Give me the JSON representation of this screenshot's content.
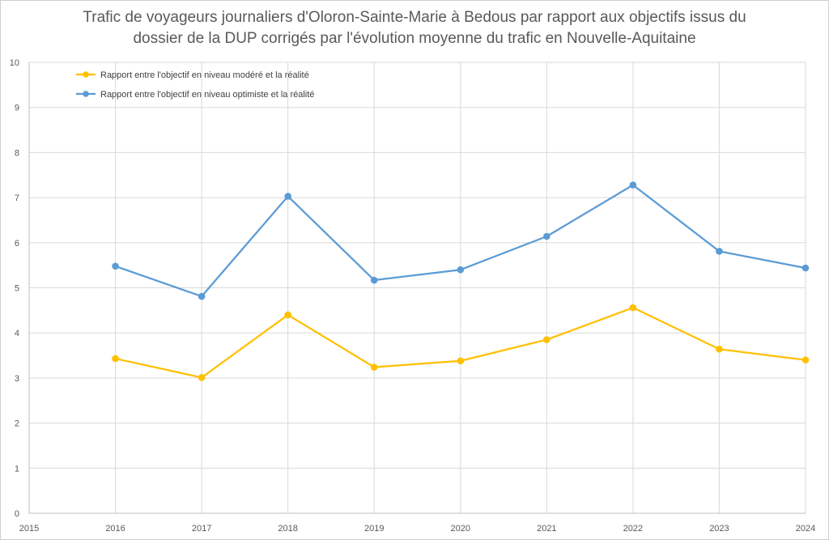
{
  "chart_data": {
    "type": "line",
    "title_line1": "Trafic de voyageurs journaliers d'Oloron-Sainte-Marie à Bedous par rapport aux objectifs issus du",
    "title_line2": "dossier de la DUP corrigés par l'évolution moyenne du trafic en Nouvelle-Aquitaine",
    "xlabel": "",
    "ylabel": "",
    "xlim": [
      2015,
      2024
    ],
    "ylim": [
      0,
      10
    ],
    "x_ticks": [
      2015,
      2016,
      2017,
      2018,
      2019,
      2020,
      2021,
      2022,
      2023,
      2024
    ],
    "y_ticks": [
      0,
      1,
      2,
      3,
      4,
      5,
      6,
      7,
      8,
      9,
      10
    ],
    "grid": true,
    "legend_position": "top-left",
    "x": [
      2016,
      2017,
      2018,
      2019,
      2020,
      2021,
      2022,
      2023,
      2024
    ],
    "series": [
      {
        "name": "Rapport entre l'objectif en niveau modéré et la réalité",
        "color": "#FFC000",
        "values": [
          3.43,
          3.01,
          4.4,
          3.24,
          3.38,
          3.85,
          4.56,
          3.64,
          3.4
        ]
      },
      {
        "name": "Rapport entre l'objectif en niveau optimiste et la réalité",
        "color": "#5B9BD5",
        "values": [
          5.48,
          4.81,
          7.03,
          5.17,
          5.4,
          6.14,
          7.28,
          5.81,
          5.44
        ]
      }
    ]
  }
}
